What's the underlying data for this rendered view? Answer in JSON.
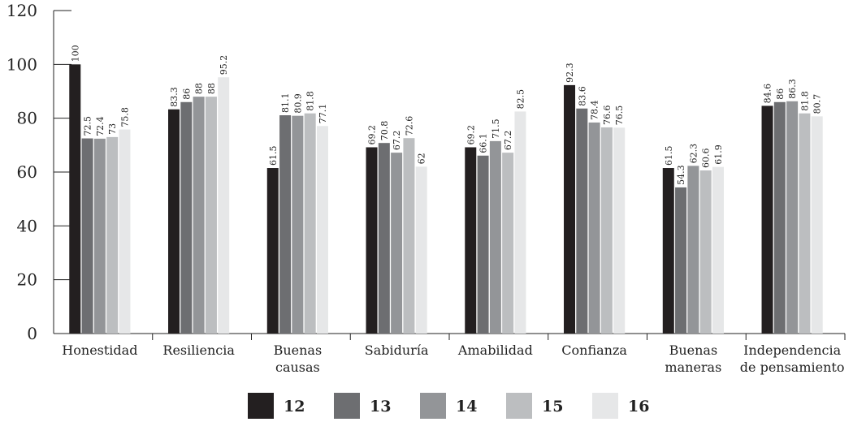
{
  "chart_data": {
    "type": "bar",
    "categories": [
      [
        "Honestidad"
      ],
      [
        "Resiliencia"
      ],
      [
        "Buenas",
        "causas"
      ],
      [
        "Sabiduría"
      ],
      [
        "Amabilidad"
      ],
      [
        "Confianza"
      ],
      [
        "Buenas",
        "maneras"
      ],
      [
        "Independencia",
        "de pensamiento"
      ]
    ],
    "series": [
      {
        "name": "12",
        "color": "#231f20",
        "values": [
          100,
          83.3,
          61.5,
          69.2,
          69.2,
          92.3,
          61.5,
          84.6
        ],
        "labels": [
          "100",
          "83.3",
          "61.5",
          "69.2",
          "69.2",
          "92.3",
          "61.5",
          "84.6"
        ]
      },
      {
        "name": "13",
        "color": "#6d6e71",
        "values": [
          72.5,
          86,
          81.1,
          70.8,
          66.1,
          83.6,
          54.3,
          86
        ],
        "labels": [
          "72.5",
          "86",
          "81.1",
          "70.8",
          "66.1",
          "83.6",
          "54.3",
          "86"
        ]
      },
      {
        "name": "14",
        "color": "#939598",
        "values": [
          72.4,
          88,
          80.9,
          67.2,
          71.5,
          78.4,
          62.3,
          86.3
        ],
        "labels": [
          "72.4",
          "88",
          "80.9",
          "67.2",
          "71.5",
          "78.4",
          "62.3",
          "86.3"
        ]
      },
      {
        "name": "15",
        "color": "#bcbec0",
        "values": [
          73,
          88,
          81.8,
          72.6,
          67.2,
          76.6,
          60.6,
          81.8
        ],
        "labels": [
          "73",
          "88",
          "81.8",
          "72.6",
          "67.2",
          "76.6",
          "60.6",
          "81.8"
        ]
      },
      {
        "name": "16",
        "color": "#e6e7e8",
        "values": [
          75.8,
          95.2,
          77.1,
          62,
          82.5,
          76.5,
          61.9,
          80.7
        ],
        "labels": [
          "75.8",
          "95.2",
          "77.1",
          "62",
          "82.5",
          "76.5",
          "61.9",
          "80.7"
        ]
      }
    ],
    "yticks": [
      "0",
      "20",
      "40",
      "60",
      "80",
      "100",
      "120"
    ],
    "ylim": [
      0,
      120
    ],
    "grid": false,
    "legend": "bottom-center"
  }
}
